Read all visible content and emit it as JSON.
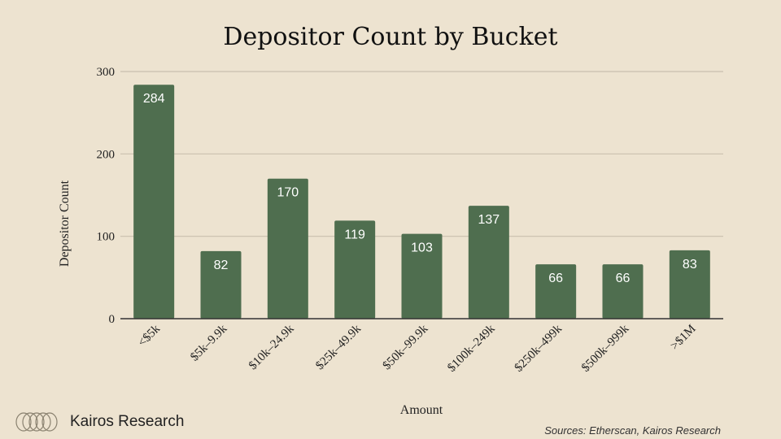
{
  "chart_data": {
    "type": "bar",
    "title": "Depositor Count by Bucket",
    "xlabel": "Amount",
    "ylabel": "Depositor Count",
    "ylim": [
      0,
      300
    ],
    "yticks": [
      "0",
      "100",
      "200",
      "300"
    ],
    "categories": [
      "<$5k",
      "$5k–9.9k",
      "$10k–24.9k",
      "$25k–49.9k",
      "$50k–99.9k",
      "$100k–249k",
      "$250k–499k",
      "$500k–999k",
      ">$1M"
    ],
    "values": [
      284,
      82,
      170,
      119,
      103,
      137,
      66,
      66,
      83
    ],
    "data_labels": [
      "284",
      "82",
      "170",
      "119",
      "103",
      "137",
      "66",
      "66",
      "83"
    ],
    "grid": true,
    "legend": "none",
    "bar_color": "#4f6e4f",
    "grid_color": "#c9bfae"
  },
  "brand": {
    "name": "Kairos Research"
  },
  "sources": "Sources: Etherscan, Kairos Research",
  "colors": {
    "background": "#ede3d0"
  }
}
